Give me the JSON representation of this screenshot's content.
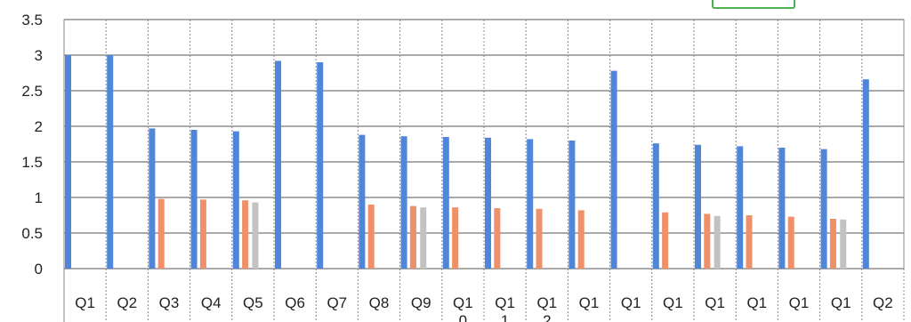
{
  "chart_data": {
    "type": "bar",
    "title": "",
    "xlabel": "",
    "ylabel": "",
    "ylim": [
      0,
      3.5
    ],
    "yticks": [
      "0",
      "0.5",
      "1",
      "1.5",
      "2",
      "2.5",
      "3",
      "3.5"
    ],
    "grid": true,
    "categories": [
      "Q1",
      "Q2",
      "Q3",
      "Q4",
      "Q5",
      "Q6",
      "Q7",
      "Q8",
      "Q9",
      "Q1",
      "Q1",
      "Q1",
      "Q1",
      "Q1",
      "Q1",
      "Q1",
      "Q1",
      "Q1",
      "Q1",
      "Q2"
    ],
    "category_wrap": [
      "",
      "",
      "",
      "",
      "",
      "",
      "",
      "",
      "",
      "0",
      "1",
      "2",
      "",
      "",
      "",
      "",
      "",
      "",
      "",
      ""
    ],
    "series": [
      {
        "color": "#4f86d9",
        "values": [
          3.0,
          3.0,
          1.97,
          1.95,
          1.93,
          2.92,
          2.9,
          1.88,
          1.86,
          1.85,
          1.84,
          1.82,
          1.8,
          2.78,
          1.76,
          1.74,
          1.72,
          1.7,
          1.68,
          2.66
        ]
      },
      {
        "color": "#f0906a",
        "values": [
          0,
          0,
          0.98,
          0.97,
          0.96,
          0,
          0,
          0.9,
          0.88,
          0.86,
          0.85,
          0.84,
          0.82,
          0,
          0.79,
          0.77,
          0.75,
          0.73,
          0.7,
          0
        ]
      },
      {
        "color": "#c2c2c2",
        "values": [
          0,
          0,
          0,
          0,
          0.93,
          0,
          0,
          0,
          0.86,
          0,
          0,
          0,
          0,
          0,
          0,
          0.74,
          0,
          0,
          0.69,
          0
        ]
      }
    ]
  }
}
